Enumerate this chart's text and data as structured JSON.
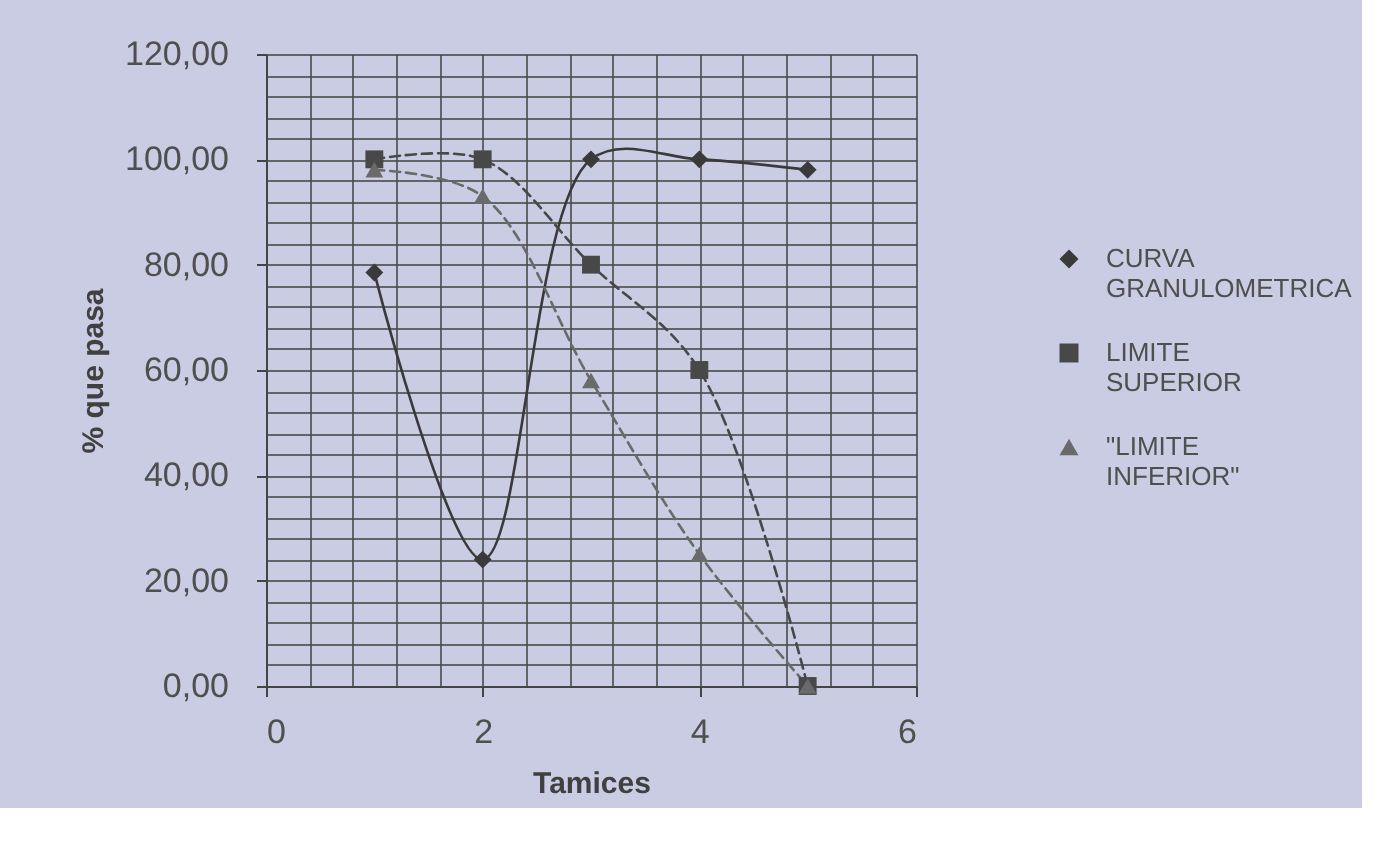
{
  "chart_data": {
    "type": "line",
    "xlabel": "Tamices",
    "ylabel": "% que pasa",
    "x": [
      1,
      2,
      3,
      4,
      5
    ],
    "series": [
      {
        "name": "CURVA GRANULOMETRICA",
        "color": "#3a3a3a",
        "values": [
          78.5,
          24,
          100,
          100,
          98
        ],
        "marker": "diamond",
        "line_style": "solid"
      },
      {
        "name": "LIMITE SUPERIOR",
        "color": "#484848",
        "values": [
          100,
          100,
          80,
          60,
          0
        ],
        "marker": "square",
        "line_style": "dashed"
      },
      {
        "name": "\"LIMITE INFERIOR\"",
        "color": "#6a6a6a",
        "values": [
          98,
          93,
          58,
          25,
          0
        ],
        "marker": "triangle",
        "line_style": "dashed"
      }
    ],
    "xlim": [
      0,
      6
    ],
    "ylim": [
      0,
      120
    ],
    "xticks": [
      0,
      {
        "value": 0.4,
        "label": null
      },
      {
        "value": 0.8,
        "label": null
      },
      {
        "value": 1.2,
        "label": null
      },
      {
        "value": 1.6,
        "label": null
      },
      2,
      {
        "value": 2.4,
        "label": null
      },
      {
        "value": 2.8,
        "label": null
      },
      {
        "value": 3.2,
        "label": null
      },
      {
        "value": 3.6,
        "label": null
      },
      4,
      {
        "value": 4.4,
        "label": null
      },
      {
        "value": 4.8,
        "label": null
      },
      {
        "value": 5.2,
        "label": null
      },
      {
        "value": 5.6,
        "label": null
      },
      6
    ],
    "yticks": [
      {
        "value": 0,
        "label": "0,00"
      },
      {
        "value": 4,
        "label": null
      },
      {
        "value": 8,
        "label": null
      },
      {
        "value": 12,
        "label": null
      },
      {
        "value": 16,
        "label": null
      },
      {
        "value": 20,
        "label": "20,00"
      },
      {
        "value": 24,
        "label": null
      },
      {
        "value": 28,
        "label": null
      },
      {
        "value": 32,
        "label": null
      },
      {
        "value": 36,
        "label": null
      },
      {
        "value": 40,
        "label": "40,00"
      },
      {
        "value": 44,
        "label": null
      },
      {
        "value": 48,
        "label": null
      },
      {
        "value": 52,
        "label": null
      },
      {
        "value": 56,
        "label": null
      },
      {
        "value": 60,
        "label": "60,00"
      },
      {
        "value": 64,
        "label": null
      },
      {
        "value": 68,
        "label": null
      },
      {
        "value": 72,
        "label": null
      },
      {
        "value": 76,
        "label": null
      },
      {
        "value": 80,
        "label": "80,00"
      },
      {
        "value": 84,
        "label": null
      },
      {
        "value": 88,
        "label": null
      },
      {
        "value": 92,
        "label": null
      },
      {
        "value": 96,
        "label": null
      },
      {
        "value": 100,
        "label": "100,00"
      },
      {
        "value": 104,
        "label": null
      },
      {
        "value": 108,
        "label": null
      },
      {
        "value": 112,
        "label": null
      },
      {
        "value": 116,
        "label": null
      },
      {
        "value": 120,
        "label": "120,00"
      }
    ],
    "grid": true,
    "legend": "right"
  }
}
